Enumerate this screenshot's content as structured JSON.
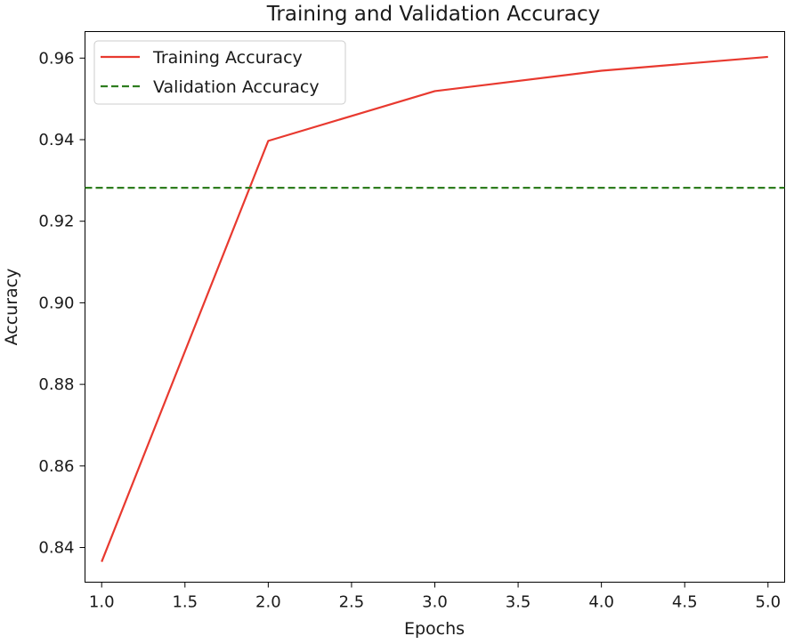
{
  "chart_data": {
    "type": "line",
    "title": "Training and Validation Accuracy",
    "xlabel": "Epochs",
    "ylabel": "Accuracy",
    "xlim": [
      0.9,
      5.1
    ],
    "ylim": [
      0.8315,
      0.9665
    ],
    "x_ticks": [
      1.0,
      1.5,
      2.0,
      2.5,
      3.0,
      3.5,
      4.0,
      4.5,
      5.0
    ],
    "x_tick_labels": [
      "1.0",
      "1.5",
      "2.0",
      "2.5",
      "3.0",
      "3.5",
      "4.0",
      "4.5",
      "5.0"
    ],
    "y_ticks": [
      0.84,
      0.86,
      0.88,
      0.9,
      0.92,
      0.94,
      0.96
    ],
    "y_tick_labels": [
      "0.84",
      "0.86",
      "0.88",
      "0.90",
      "0.92",
      "0.94",
      "0.96"
    ],
    "grid": false,
    "legend_position": "top-left",
    "series": [
      {
        "name": "Training Accuracy",
        "style": "solid",
        "color": "#e8392f",
        "x": [
          1,
          2,
          3,
          4,
          5
        ],
        "y": [
          0.8365,
          0.9397,
          0.9519,
          0.9569,
          0.9603
        ]
      },
      {
        "name": "Validation Accuracy",
        "style": "dashed",
        "color": "#2e7d1f",
        "type": "hline",
        "y": 0.9282
      }
    ]
  }
}
